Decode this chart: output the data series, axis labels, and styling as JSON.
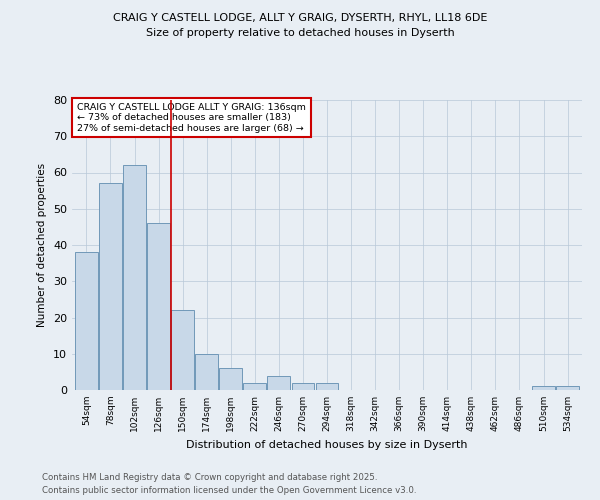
{
  "title1": "CRAIG Y CASTELL LODGE, ALLT Y GRAIG, DYSERTH, RHYL, LL18 6DE",
  "title2": "Size of property relative to detached houses in Dyserth",
  "xlabel": "Distribution of detached houses by size in Dyserth",
  "ylabel": "Number of detached properties",
  "categories": [
    "54sqm",
    "78sqm",
    "102sqm",
    "126sqm",
    "150sqm",
    "174sqm",
    "198sqm",
    "222sqm",
    "246sqm",
    "270sqm",
    "294sqm",
    "318sqm",
    "342sqm",
    "366sqm",
    "390sqm",
    "414sqm",
    "438sqm",
    "462sqm",
    "486sqm",
    "510sqm",
    "534sqm"
  ],
  "values": [
    38,
    57,
    62,
    46,
    22,
    10,
    6,
    2,
    4,
    2,
    2,
    0,
    0,
    0,
    0,
    0,
    0,
    0,
    0,
    1,
    1
  ],
  "bar_color": "#c8d8e8",
  "bar_edge_color": "#7098b8",
  "vline_x": 3.5,
  "vline_color": "#cc0000",
  "annotation_text": "CRAIG Y CASTELL LODGE ALLT Y GRAIG: 136sqm\n← 73% of detached houses are smaller (183)\n27% of semi-detached houses are larger (68) →",
  "annotation_box_color": "#ffffff",
  "annotation_box_edge": "#cc0000",
  "ylim": [
    0,
    80
  ],
  "yticks": [
    0,
    10,
    20,
    30,
    40,
    50,
    60,
    70,
    80
  ],
  "footnote1": "Contains HM Land Registry data © Crown copyright and database right 2025.",
  "footnote2": "Contains public sector information licensed under the Open Government Licence v3.0.",
  "bg_color": "#e8eef4",
  "plot_bg_color": "#e8eef4",
  "grid_color": "#b8c8d8"
}
